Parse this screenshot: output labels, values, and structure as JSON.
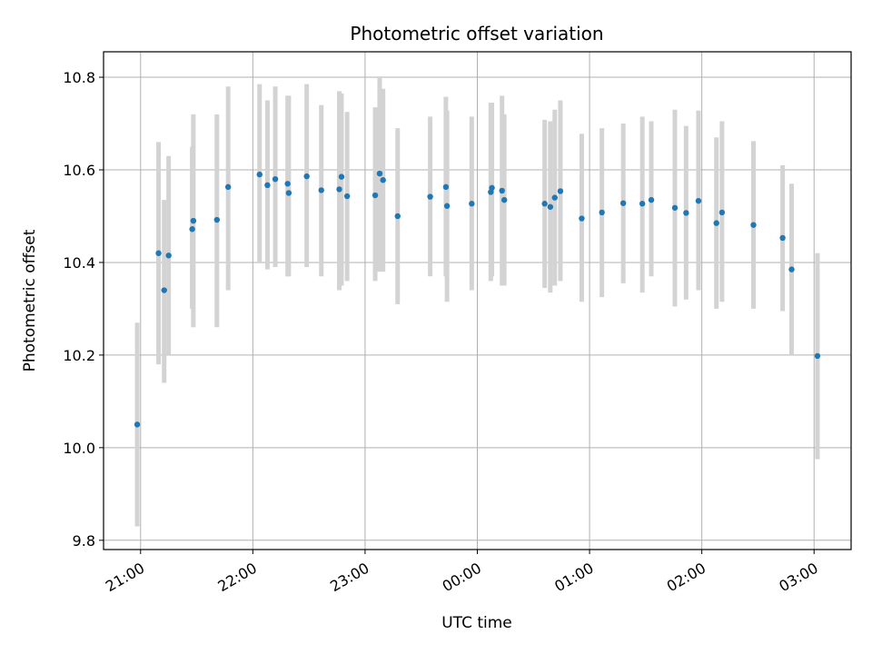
{
  "chart_data": {
    "type": "scatter",
    "title": "Photometric offset variation",
    "xlabel": "UTC time",
    "ylabel": "Photometric offset",
    "x_tick_labels": [
      "21:00",
      "22:00",
      "23:00",
      "00:00",
      "01:00",
      "02:00",
      "03:00"
    ],
    "y_tick_labels": [
      "9.8",
      "10.0",
      "10.2",
      "10.4",
      "10.6",
      "10.8"
    ],
    "x_range_hours": [
      20.67,
      27.33
    ],
    "ylim": [
      9.78,
      10.855
    ],
    "grid": true,
    "colors": {
      "point": "#1f77b4",
      "errorbar": "#d3d3d3",
      "grid": "#b0b0b0"
    },
    "series": [
      {
        "x": [
          20.97,
          21.16,
          21.21,
          21.25,
          21.46,
          21.47,
          21.68,
          21.78,
          22.06,
          22.13,
          22.2,
          22.31,
          22.32,
          22.48,
          22.61,
          22.77,
          22.79,
          22.84,
          23.09,
          23.13,
          23.16,
          23.29,
          23.58,
          23.72,
          23.73,
          23.95,
          24.12,
          24.13,
          24.22,
          24.24,
          24.6,
          24.65,
          24.69,
          24.74,
          24.93,
          25.11,
          25.3,
          25.47,
          25.55,
          25.76,
          25.86,
          25.97,
          26.13,
          26.18,
          26.46,
          26.72,
          26.8,
          27.03
        ],
        "y": [
          10.05,
          10.42,
          10.34,
          10.415,
          10.472,
          10.49,
          10.492,
          10.563,
          10.59,
          10.567,
          10.58,
          10.57,
          10.55,
          10.586,
          10.556,
          10.558,
          10.585,
          10.543,
          10.545,
          10.592,
          10.578,
          10.5,
          10.542,
          10.563,
          10.522,
          10.527,
          10.552,
          10.561,
          10.555,
          10.535,
          10.527,
          10.52,
          10.54,
          10.554,
          10.495,
          10.508,
          10.528,
          10.527,
          10.535,
          10.518,
          10.507,
          10.533,
          10.485,
          10.508,
          10.481,
          10.453,
          10.385,
          10.198
        ],
        "err_low": [
          9.83,
          10.18,
          10.14,
          10.2,
          10.3,
          10.26,
          10.26,
          10.34,
          10.4,
          10.385,
          10.39,
          10.37,
          10.37,
          10.39,
          10.37,
          10.34,
          10.35,
          10.36,
          10.36,
          10.38,
          10.38,
          10.31,
          10.37,
          10.37,
          10.315,
          10.34,
          10.36,
          10.37,
          10.35,
          10.35,
          10.345,
          10.335,
          10.35,
          10.36,
          10.315,
          10.325,
          10.355,
          10.335,
          10.37,
          10.305,
          10.32,
          10.34,
          10.3,
          10.315,
          10.3,
          10.295,
          10.2,
          9.975
        ],
        "err_high": [
          10.27,
          10.66,
          10.535,
          10.63,
          10.65,
          10.72,
          10.72,
          10.78,
          10.785,
          10.75,
          10.78,
          10.76,
          10.76,
          10.785,
          10.74,
          10.77,
          10.765,
          10.725,
          10.735,
          10.8,
          10.775,
          10.69,
          10.715,
          10.758,
          10.728,
          10.715,
          10.745,
          10.745,
          10.76,
          10.72,
          10.708,
          10.705,
          10.73,
          10.75,
          10.678,
          10.69,
          10.7,
          10.715,
          10.705,
          10.73,
          10.695,
          10.728,
          10.67,
          10.705,
          10.662,
          10.61,
          10.57,
          10.42
        ]
      }
    ]
  }
}
